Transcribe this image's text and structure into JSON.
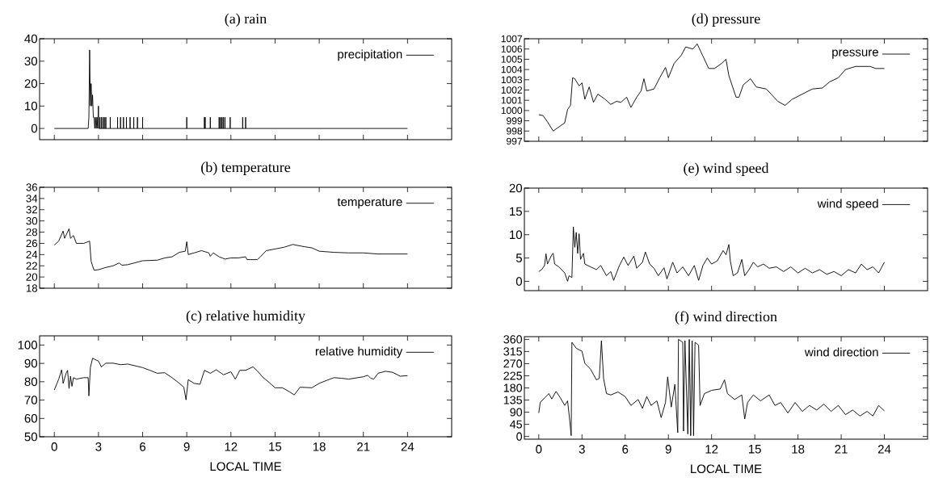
{
  "chart_data": [
    {
      "type": "line",
      "title": "(a) rain",
      "x": [
        0,
        2.3,
        2.35,
        2.4,
        2.45,
        2.5,
        2.55,
        2.6,
        2.65,
        2.7,
        2.75,
        2.8,
        2.85,
        2.9,
        2.95,
        3.0,
        3.02,
        3.05,
        3.1,
        3.1,
        3.1,
        3.2,
        3.2,
        3.2,
        3.3,
        3.3,
        3.3,
        3.4,
        3.4,
        3.4,
        3.5,
        3.5,
        3.5,
        3.8,
        3.8,
        3.8,
        4.3,
        4.3,
        4.3,
        4.5,
        4.5,
        4.5,
        4.7,
        4.7,
        4.7,
        4.9,
        4.9,
        4.9,
        5.15,
        5.15,
        5.15,
        5.4,
        5.4,
        5.4,
        5.65,
        5.65,
        5.65,
        6.0,
        6.0,
        6.0,
        9.0,
        9.0,
        9.0,
        10.2,
        10.2,
        10.2,
        10.25,
        10.25,
        10.25,
        10.6,
        10.6,
        10.6,
        11.2,
        11.2,
        11.2,
        11.3,
        11.3,
        11.3,
        11.4,
        11.4,
        11.4,
        11.5,
        11.5,
        11.5,
        11.6,
        11.6,
        11.6,
        11.95,
        11.95,
        11.95,
        12.8,
        12.8,
        12.8,
        13.0,
        13.0,
        13.0,
        24
      ],
      "series": [
        {
          "name": "precipitation",
          "color": "#000000",
          "values": [
            0,
            0,
            5,
            35,
            10,
            20,
            10,
            15,
            5,
            5,
            0,
            5,
            0,
            5,
            0,
            10,
            0,
            0,
            0,
            5,
            0,
            0,
            5,
            0,
            0,
            5,
            0,
            0,
            5,
            0,
            0,
            5,
            0,
            0,
            5,
            0,
            0,
            5,
            0,
            0,
            5,
            0,
            0,
            5,
            0,
            0,
            5,
            0,
            0,
            5,
            0,
            0,
            5,
            0,
            0,
            5,
            0,
            0,
            5,
            0,
            0,
            5,
            0,
            0,
            5,
            0,
            0,
            5,
            0,
            0,
            5,
            0,
            0,
            5,
            0,
            0,
            5,
            0,
            0,
            5,
            0,
            0,
            5,
            0,
            0,
            5,
            0,
            0,
            5,
            0,
            0,
            5,
            0,
            0,
            5,
            0,
            0
          ]
        }
      ],
      "xlim": [
        -1,
        27
      ],
      "xticks": [
        0,
        3,
        6,
        9,
        12,
        15,
        18,
        21,
        24
      ],
      "ylim": [
        -5,
        40
      ],
      "yticks": [
        0,
        10,
        20,
        30,
        40
      ],
      "legend": "top right",
      "tick_labels": "y"
    },
    {
      "type": "line",
      "title": "(d) pressure",
      "x": [
        0,
        0.3,
        0.6,
        1.0,
        1.3,
        1.8,
        2.0,
        2.2,
        2.35,
        2.5,
        2.8,
        3.0,
        3.2,
        3.5,
        3.8,
        4.1,
        4.6,
        5.0,
        5.4,
        5.7,
        6.1,
        6.4,
        6.8,
        7.1,
        7.3,
        7.5,
        8.0,
        8.4,
        8.8,
        9.0,
        9.4,
        9.9,
        10.2,
        10.7,
        11.0,
        11.4,
        11.8,
        12.2,
        12.7,
        13.0,
        13.2,
        13.7,
        13.9,
        14.2,
        14.7,
        15.1,
        15.8,
        16.6,
        17.1,
        17.6,
        18.3,
        19.0,
        19.7,
        20.2,
        20.8,
        21.3,
        22.0,
        23.0,
        23.4,
        24.0
      ],
      "series": [
        {
          "name": "pressure",
          "color": "#000000",
          "values": [
            999.6,
            999.5,
            998.9,
            998.0,
            998.3,
            998.8,
            1000.1,
            1000.5,
            1003.2,
            1003.1,
            1002.4,
            1002.7,
            1001.1,
            1002.3,
            1000.8,
            1001.6,
            1001.1,
            1000.6,
            1000.9,
            1000.8,
            1001.3,
            1000.3,
            1001.3,
            1001.9,
            1003.1,
            1001.9,
            1002.1,
            1003.2,
            1004.2,
            1003.2,
            1004.6,
            1005.4,
            1006.2,
            1006.0,
            1006.5,
            1005.3,
            1004.1,
            1004.1,
            1004.6,
            1005.0,
            1003.4,
            1001.3,
            1001.3,
            1002.5,
            1003.1,
            1002.3,
            1002.1,
            1000.9,
            1000.5,
            1001.1,
            1001.6,
            1002.1,
            1002.2,
            1002.8,
            1003.2,
            1004.0,
            1004.3,
            1004.3,
            1004.1,
            1004.1
          ]
        }
      ],
      "xlim": [
        -1,
        27
      ],
      "xticks": [
        0,
        3,
        6,
        9,
        12,
        15,
        18,
        21,
        24
      ],
      "ylim": [
        997,
        1007
      ],
      "yticks": [
        997,
        998,
        999,
        1000,
        1001,
        1002,
        1003,
        1004,
        1005,
        1006,
        1007
      ],
      "legend": "top right",
      "tick_labels": "y"
    },
    {
      "type": "line",
      "title": "(b) temperature",
      "x": [
        0,
        0.3,
        0.6,
        0.7,
        1.0,
        1.1,
        1.3,
        1.5,
        2.0,
        2.4,
        2.5,
        2.7,
        3.0,
        3.5,
        4.0,
        4.4,
        4.6,
        5.0,
        6.0,
        7.0,
        7.5,
        8.0,
        8.5,
        8.9,
        9.0,
        9.1,
        9.5,
        10.0,
        10.5,
        10.6,
        10.8,
        11.2,
        11.6,
        12.0,
        12.5,
        13.0,
        13.1,
        13.8,
        14.0,
        14.4,
        15.0,
        15.6,
        16.2,
        17.0,
        17.5,
        18.0,
        19.0,
        20.0,
        21.0,
        22.0,
        23.0,
        24.0
      ],
      "series": [
        {
          "name": "temperature",
          "color": "#000000",
          "values": [
            25.7,
            26.4,
            28.2,
            26.9,
            28.6,
            26.9,
            27.4,
            26.0,
            26.0,
            26.4,
            22.8,
            21.2,
            21.3,
            21.7,
            22.0,
            22.5,
            22.1,
            22.2,
            22.9,
            23.0,
            23.4,
            23.6,
            24.4,
            24.6,
            26.3,
            24.0,
            24.3,
            24.7,
            24.3,
            23.7,
            24.3,
            23.6,
            23.2,
            23.4,
            23.4,
            23.6,
            23.1,
            23.1,
            23.6,
            24.7,
            25.0,
            25.3,
            25.8,
            25.4,
            25.2,
            24.6,
            24.4,
            24.3,
            24.3,
            24.1,
            24.1,
            24.1
          ]
        }
      ],
      "xlim": [
        -1,
        27
      ],
      "xticks": [
        0,
        3,
        6,
        9,
        12,
        15,
        18,
        21,
        24
      ],
      "ylim": [
        18,
        36
      ],
      "yticks": [
        18,
        20,
        22,
        24,
        26,
        28,
        30,
        32,
        34,
        36
      ],
      "legend": "top right",
      "tick_labels": "y"
    },
    {
      "type": "line",
      "title": "(e) wind speed",
      "x": [
        0,
        0.2,
        0.4,
        0.5,
        0.6,
        0.9,
        1.0,
        1.1,
        1.4,
        1.8,
        2.0,
        2.1,
        2.3,
        2.4,
        2.5,
        2.6,
        2.7,
        2.8,
        2.9,
        3.1,
        3.2,
        3.6,
        4.0,
        4.3,
        4.7,
        5.0,
        5.2,
        5.6,
        5.9,
        6.2,
        6.6,
        6.8,
        7.2,
        7.4,
        7.7,
        8.0,
        8.3,
        8.7,
        8.9,
        9.3,
        9.6,
        10.0,
        10.4,
        10.8,
        11.1,
        11.4,
        11.7,
        12.0,
        12.4,
        12.8,
        13.0,
        13.2,
        13.3,
        13.5,
        13.8,
        14.1,
        14.3,
        14.6,
        14.9,
        15.2,
        15.6,
        16.0,
        16.5,
        17.0,
        17.5,
        18.0,
        18.5,
        19.0,
        19.5,
        20.0,
        20.5,
        21.0,
        21.5,
        22.0,
        22.4,
        22.8,
        23.2,
        23.6,
        24.0
      ],
      "series": [
        {
          "name": "wind speed",
          "color": "#000000",
          "values": [
            2.1,
            2.5,
            3.4,
            5.9,
            3.7,
            5.7,
            6.0,
            3.7,
            3.1,
            1.8,
            0.0,
            1.2,
            0.8,
            11.7,
            7.3,
            10.5,
            6.0,
            10.2,
            4.7,
            6.0,
            3.7,
            3.1,
            2.5,
            3.4,
            1.2,
            2.1,
            0.2,
            3.4,
            5.2,
            3.4,
            5.4,
            2.8,
            4.1,
            6.3,
            3.7,
            2.8,
            1.2,
            2.9,
            0.5,
            4.1,
            1.8,
            3.1,
            1.2,
            3.4,
            0.2,
            3.4,
            5.0,
            3.7,
            4.4,
            6.6,
            5.7,
            7.9,
            4.4,
            1.2,
            1.8,
            4.7,
            1.2,
            2.5,
            4.1,
            3.1,
            3.7,
            2.8,
            3.1,
            2.1,
            3.1,
            1.8,
            2.8,
            1.8,
            2.5,
            1.5,
            2.1,
            1.2,
            2.5,
            1.8,
            3.7,
            2.5,
            3.1,
            1.8,
            4.1
          ]
        }
      ],
      "xlim": [
        -1,
        27
      ],
      "xticks": [
        0,
        3,
        6,
        9,
        12,
        15,
        18,
        21,
        24
      ],
      "ylim": [
        -2,
        20
      ],
      "yticks": [
        0,
        5,
        10,
        15,
        20
      ],
      "legend": "top right",
      "tick_labels": "y"
    },
    {
      "type": "line",
      "title": "(c) relative humidity",
      "xlabel": "LOCAL TIME",
      "x": [
        0,
        0.3,
        0.5,
        0.6,
        0.8,
        0.9,
        1.0,
        1.1,
        1.2,
        1.3,
        1.5,
        2.0,
        2.3,
        2.35,
        2.45,
        2.6,
        3.0,
        3.2,
        3.5,
        4.0,
        4.5,
        5.0,
        6.0,
        6.5,
        7.0,
        7.5,
        8.0,
        8.5,
        8.8,
        8.95,
        9.1,
        9.5,
        9.9,
        10.2,
        10.6,
        11.0,
        11.5,
        12.0,
        12.3,
        12.6,
        13.0,
        13.5,
        13.8,
        14.2,
        14.6,
        15.0,
        15.5,
        16.0,
        16.3,
        16.7,
        17.5,
        18.0,
        18.5,
        19.0,
        19.5,
        20.0,
        21.0,
        21.3,
        21.5,
        21.7,
        22.0,
        22.5,
        23.0,
        23.5,
        24.0
      ],
      "series": [
        {
          "name": "relative humidity",
          "color": "#000000",
          "values": [
            75.5,
            81.4,
            86.5,
            79.1,
            84.6,
            86.2,
            76.3,
            83.0,
            77.5,
            82.2,
            81.4,
            82.2,
            82.2,
            72.3,
            87.7,
            92.8,
            91.2,
            88.1,
            90.1,
            90.1,
            89.3,
            89.6,
            87.7,
            86.2,
            84.6,
            84.9,
            82.2,
            79.1,
            77.0,
            70.1,
            81.1,
            79.1,
            78.6,
            86.2,
            84.6,
            86.5,
            83.8,
            85.4,
            81.4,
            86.2,
            86.2,
            88.1,
            85.8,
            82.2,
            79.6,
            76.7,
            76.7,
            74.4,
            72.8,
            77.0,
            76.7,
            79.1,
            80.7,
            82.2,
            81.9,
            81.4,
            82.7,
            83.5,
            81.9,
            81.4,
            84.6,
            85.7,
            85.1,
            83.0,
            83.3
          ]
        }
      ],
      "xlim": [
        -1,
        27
      ],
      "xticks": [
        0,
        3,
        6,
        9,
        12,
        15,
        18,
        21,
        24
      ],
      "ylim": [
        50,
        105
      ],
      "yticks": [
        50,
        60,
        70,
        80,
        90,
        100
      ],
      "legend": "top right"
    },
    {
      "type": "line",
      "title": "(f) wind direction",
      "xlabel": "LOCAL TIME",
      "x": [
        0,
        0.1,
        0.4,
        0.7,
        0.9,
        1.2,
        1.5,
        1.8,
        2.0,
        2.15,
        2.25,
        2.3,
        2.6,
        3.0,
        3.2,
        3.6,
        4.0,
        4.2,
        4.35,
        4.5,
        4.7,
        5.0,
        5.5,
        6.0,
        6.4,
        6.9,
        7.2,
        7.5,
        7.8,
        8.2,
        8.5,
        8.8,
        8.95,
        9.2,
        9.45,
        9.65,
        9.7,
        10.0,
        10.05,
        10.15,
        10.35,
        10.45,
        10.55,
        10.65,
        10.75,
        10.85,
        11.1,
        11.2,
        11.5,
        12.0,
        12.6,
        12.9,
        13.1,
        13.6,
        14.1,
        14.3,
        14.5,
        14.9,
        15.4,
        16.0,
        16.4,
        16.8,
        17.3,
        17.8,
        18.3,
        18.8,
        19.3,
        19.8,
        20.3,
        20.8,
        21.3,
        21.8,
        22.3,
        22.8,
        23.2,
        23.6,
        24.0
      ],
      "series": [
        {
          "name": "wind direction",
          "color": "#000000",
          "values": [
            87,
            126,
            143,
            159,
            139,
            167,
            143,
            115,
            132,
            59,
            3,
            349,
            327,
            316,
            271,
            249,
            210,
            215,
            355,
            215,
            159,
            154,
            165,
            148,
            115,
            137,
            104,
            148,
            115,
            132,
            70,
            126,
            221,
            109,
            193,
            14,
            360,
            349,
            20,
            355,
            9,
            360,
            3,
            355,
            3,
            349,
            338,
            115,
            159,
            171,
            176,
            210,
            159,
            137,
            154,
            65,
            126,
            154,
            132,
            154,
            115,
            126,
            87,
            126,
            93,
            115,
            98,
            120,
            93,
            115,
            81,
            98,
            76,
            93,
            76,
            115,
            95
          ]
        }
      ],
      "xlim": [
        -1,
        27
      ],
      "xticks": [
        0,
        3,
        6,
        9,
        12,
        15,
        18,
        21,
        24
      ],
      "ylim": [
        -10,
        370
      ],
      "yticks": [
        0,
        45,
        90,
        135,
        180,
        225,
        270,
        315,
        360
      ],
      "legend": "top right"
    }
  ]
}
